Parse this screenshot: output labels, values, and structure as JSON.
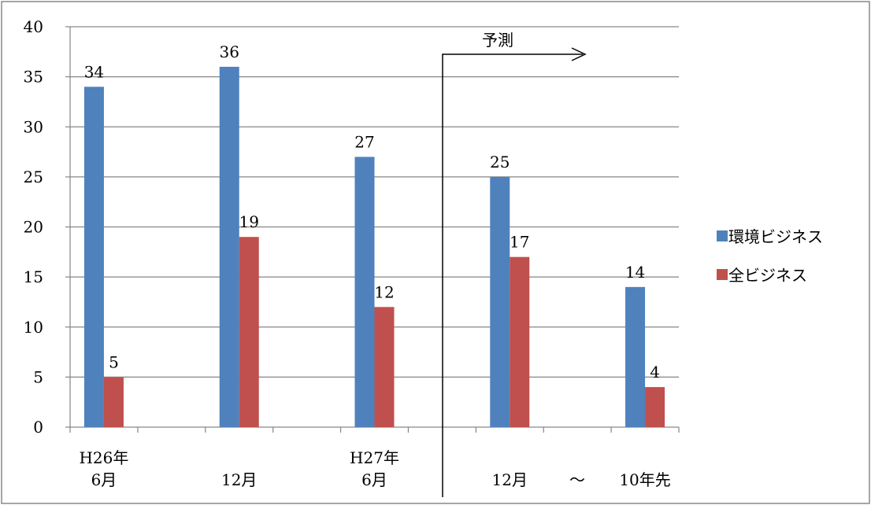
{
  "chart_data": {
    "type": "bar",
    "title": "",
    "xlabel": "",
    "ylabel": "",
    "ylim": [
      0,
      40
    ],
    "yticks": [
      0,
      5,
      10,
      15,
      20,
      25,
      30,
      35,
      40
    ],
    "grid": true,
    "legend_position": "right",
    "categories": [
      {
        "line1": "H26年",
        "line2": "6月"
      },
      {
        "line1": "",
        "line2": "12月"
      },
      {
        "line1": "H27年",
        "line2": "6月"
      },
      {
        "line1": "",
        "line2": "12月"
      },
      {
        "line1": "",
        "line2": "10年先"
      }
    ],
    "series": [
      {
        "name": "環境ビジネス",
        "color": "#4F81BD",
        "values": [
          34,
          36,
          27,
          25,
          14
        ]
      },
      {
        "name": "全ビジネス",
        "color": "#C0504D",
        "values": [
          5,
          19,
          12,
          17,
          4
        ]
      }
    ],
    "annotations": {
      "forecast_label": "予測",
      "separator_text": "～"
    }
  }
}
